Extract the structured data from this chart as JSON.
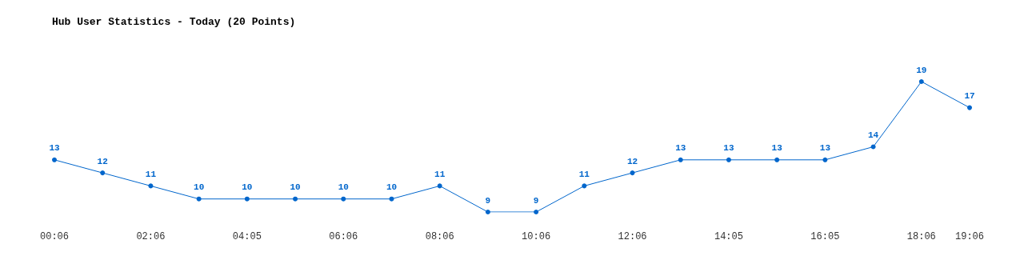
{
  "chart_data": {
    "type": "line",
    "title": "Hub User Statistics - Today (20 Points)",
    "categories": [
      "00:06",
      null,
      "02:06",
      null,
      "04:05",
      null,
      "06:06",
      null,
      "08:06",
      null,
      "10:06",
      null,
      "12:06",
      null,
      "14:05",
      null,
      "16:05",
      null,
      "18:06",
      "19:06"
    ],
    "series": [
      {
        "color": "#0066cc",
        "values": [
          13,
          12,
          11,
          10,
          10,
          10,
          10,
          10,
          11,
          9,
          9,
          11,
          12,
          13,
          13,
          13,
          13,
          14,
          19,
          17
        ]
      }
    ],
    "data_labels": true,
    "marker": "circle",
    "line_style": "solid",
    "tick_labels": "x"
  }
}
